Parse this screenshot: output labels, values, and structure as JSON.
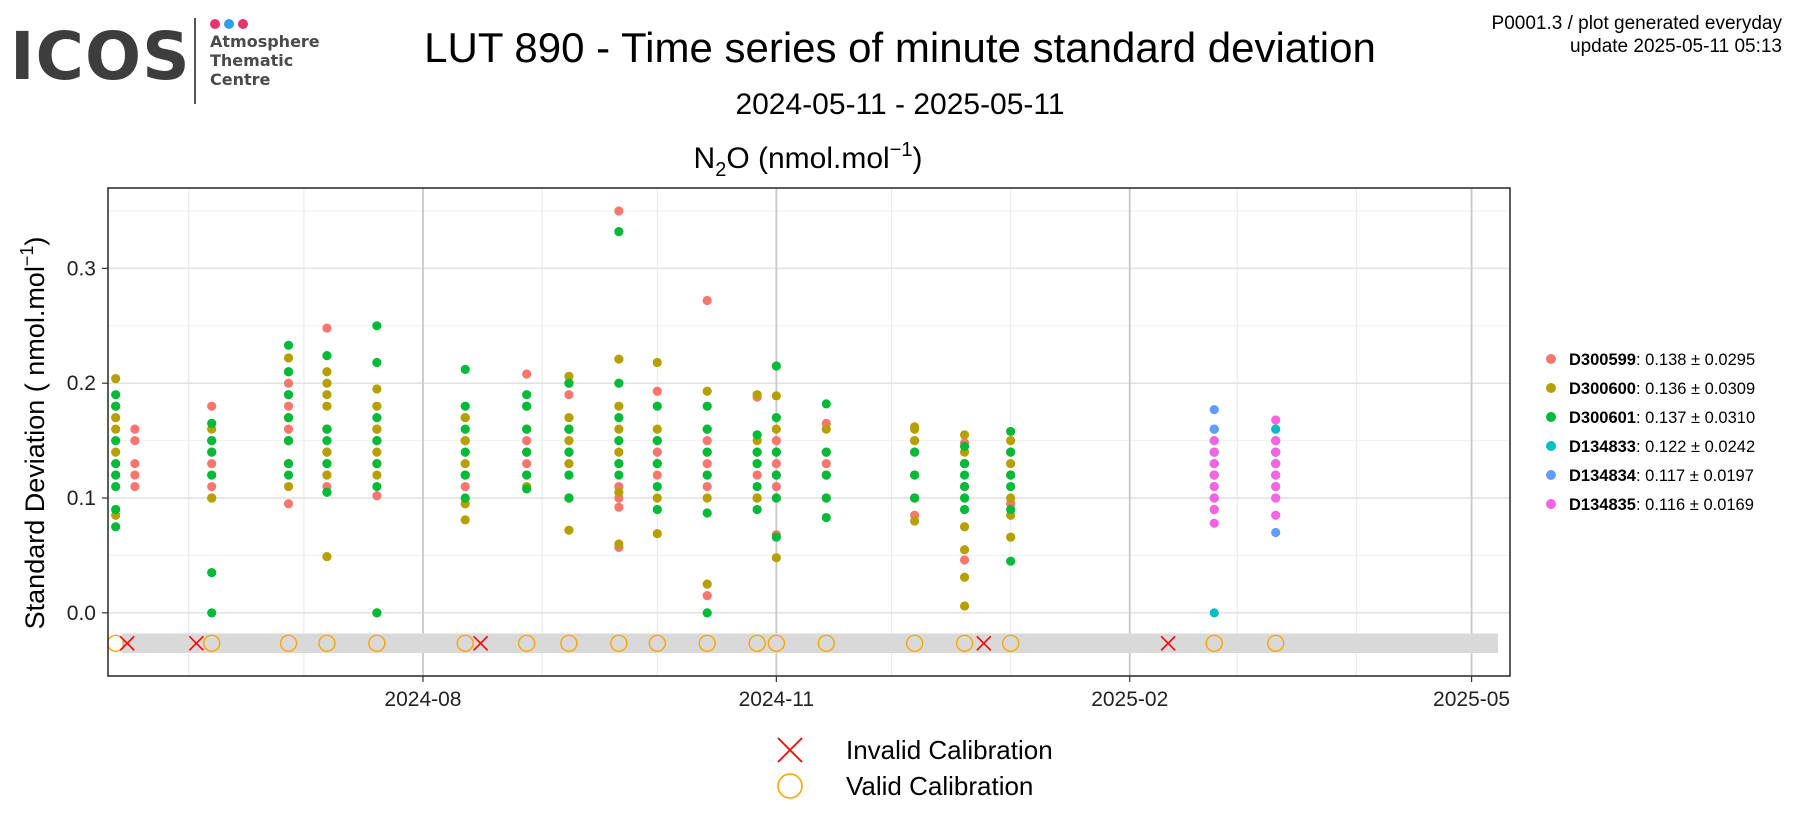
{
  "logo": {
    "wordmark": "ICOS",
    "line1": "Atmosphere",
    "line2": "Thematic",
    "line3": "Centre",
    "dot_colors": [
      "#e8336d",
      "#2f9ee8",
      "#e8336d"
    ]
  },
  "header": {
    "title": "LUT 890 - Time series of minute standard deviation",
    "date_range": "2024-05-11 - 2025-05-11",
    "corner_line1": "P0001.3 / plot generated everyday",
    "corner_line2": "update  2025-05-11 05:13"
  },
  "chart_data": {
    "type": "scatter",
    "title": "N2O (nmol.mol-1)",
    "title_parts": {
      "a": "N",
      "sub": "2",
      "b": "O (nmol.mol",
      "sup": "−1",
      "c": ")"
    },
    "ylabel_parts": {
      "a": "Standard Deviation ( nmol.mol",
      "sup": "−1",
      "c": ")"
    },
    "x_type": "date",
    "xlim": [
      "2024-05-11",
      "2025-05-11"
    ],
    "ylim": [
      -0.055,
      0.37
    ],
    "x_ticks": [
      "2024-08-01",
      "2024-11-01",
      "2025-02-01",
      "2025-05-01"
    ],
    "x_tick_labels": [
      "2024-08",
      "2024-11",
      "2025-02",
      "2025-05"
    ],
    "y_ticks": [
      0.0,
      0.1,
      0.2,
      0.3
    ],
    "y_tick_labels": [
      "0.0",
      "0.1",
      "0.2",
      "0.3"
    ],
    "grid": true,
    "calibration_band": [
      -0.035,
      -0.018
    ],
    "series": [
      {
        "name": "D300599",
        "label": ": 0.138 ± 0.0295",
        "color": "#F8766D",
        "points": [
          [
            "2024-05-18",
            [
              0.13,
              0.15,
              0.16,
              0.12,
              0.11
            ]
          ],
          [
            "2024-06-07",
            [
              0.18,
              0.1,
              0.11,
              0.13,
              0.15
            ]
          ],
          [
            "2024-06-27",
            [
              0.095,
              0.2,
              0.18,
              0.15,
              0.16
            ]
          ],
          [
            "2024-07-07",
            [
              0.248,
              0.11,
              0.12,
              0.14,
              0.16
            ]
          ],
          [
            "2024-07-20",
            [
              0.102,
              0.13,
              0.16,
              0.15
            ]
          ],
          [
            "2024-08-12",
            [
              0.15,
              0.17,
              0.12,
              0.11
            ]
          ],
          [
            "2024-08-28",
            [
              0.208,
              0.15,
              0.13,
              0.12
            ]
          ],
          [
            "2024-09-08",
            [
              0.19,
              0.2,
              0.16,
              0.14,
              0.12,
              0.1
            ]
          ],
          [
            "2024-09-21",
            [
              0.35,
              0.057,
              0.092,
              0.1,
              0.11,
              0.13
            ]
          ],
          [
            "2024-10-01",
            [
              0.193,
              0.15,
              0.14,
              0.12
            ]
          ],
          [
            "2024-10-14",
            [
              0.272,
              0.015,
              0.15,
              0.13,
              0.11
            ]
          ],
          [
            "2024-10-27",
            [
              0.188,
              0.14,
              0.1,
              0.12
            ]
          ],
          [
            "2024-11-01",
            [
              0.068,
              0.15,
              0.13,
              0.11
            ]
          ],
          [
            "2024-11-14",
            [
              0.165,
              0.1,
              0.13,
              0.12
            ]
          ],
          [
            "2024-12-07",
            [
              0.085,
              0.1,
              0.12,
              0.15
            ]
          ],
          [
            "2024-12-20",
            [
              0.046,
              0.148,
              0.11,
              0.13
            ]
          ],
          [
            "2025-01-01",
            [
              0.095,
              0.12,
              0.14
            ]
          ],
          [
            "2025-02-23",
            [
              0.09,
              0.1,
              0.12
            ]
          ]
        ]
      },
      {
        "name": "D300600",
        "label": ": 0.136 ± 0.0309",
        "color": "#B79F00",
        "points": [
          [
            "2024-05-13",
            [
              0.204,
              0.085,
              0.16,
              0.18,
              0.12,
              0.14,
              0.17
            ]
          ],
          [
            "2024-06-07",
            [
              0.1,
              0.12,
              0.14,
              0.16
            ]
          ],
          [
            "2024-06-27",
            [
              0.222,
              0.11,
              0.13,
              0.15,
              0.17,
              0.19,
              0.21
            ]
          ],
          [
            "2024-07-07",
            [
              0.049,
              0.105,
              0.21,
              0.2,
              0.19,
              0.18,
              0.16,
              0.14,
              0.13,
              0.12
            ]
          ],
          [
            "2024-07-20",
            [
              0.0,
              0.195,
              0.18,
              0.16,
              0.14,
              0.12
            ]
          ],
          [
            "2024-08-12",
            [
              0.081,
              0.095,
              0.13,
              0.15,
              0.17
            ]
          ],
          [
            "2024-08-28",
            [
              0.11,
              0.14,
              0.16,
              0.18
            ]
          ],
          [
            "2024-09-08",
            [
              0.206,
              0.072,
              0.1,
              0.13,
              0.15,
              0.17
            ]
          ],
          [
            "2024-09-21",
            [
              0.221,
              0.06,
              0.105,
              0.14,
              0.16,
              0.18
            ]
          ],
          [
            "2024-10-01",
            [
              0.218,
              0.069,
              0.1,
              0.13,
              0.16
            ]
          ],
          [
            "2024-10-14",
            [
              0.193,
              0.025,
              0.1,
              0.12,
              0.14,
              0.16
            ]
          ],
          [
            "2024-10-27",
            [
              0.19,
              0.1,
              0.13,
              0.15
            ]
          ],
          [
            "2024-11-01",
            [
              0.189,
              0.048,
              0.1,
              0.12,
              0.14,
              0.16
            ]
          ],
          [
            "2024-11-14",
            [
              0.16,
              0.12,
              0.14
            ]
          ],
          [
            "2024-12-07",
            [
              0.162,
              0.08,
              0.1,
              0.12,
              0.14,
              0.15,
              0.16
            ]
          ],
          [
            "2024-12-20",
            [
              0.155,
              0.006,
              0.031,
              0.055,
              0.075,
              0.1,
              0.13,
              0.14
            ]
          ],
          [
            "2025-01-01",
            [
              0.15,
              0.066,
              0.085,
              0.1,
              0.12,
              0.13
            ]
          ]
        ]
      },
      {
        "name": "D300601",
        "label": ": 0.137 ± 0.0310",
        "color": "#00BA38",
        "points": [
          [
            "2024-05-13",
            [
              0.075,
              0.19,
              0.18,
              0.15,
              0.13,
              0.12,
              0.11,
              0.09
            ]
          ],
          [
            "2024-06-07",
            [
              0.035,
              0.0,
              0.165,
              0.15,
              0.14,
              0.12
            ]
          ],
          [
            "2024-06-27",
            [
              0.233,
              0.21,
              0.19,
              0.17,
              0.15,
              0.13,
              0.12
            ]
          ],
          [
            "2024-07-07",
            [
              0.224,
              0.105,
              0.16,
              0.15,
              0.13
            ]
          ],
          [
            "2024-07-20",
            [
              0.25,
              0.0,
              0.218,
              0.17,
              0.15,
              0.13,
              0.11
            ]
          ],
          [
            "2024-08-12",
            [
              0.212,
              0.1,
              0.12,
              0.14,
              0.16,
              0.18
            ]
          ],
          [
            "2024-08-28",
            [
              0.19,
              0.108,
              0.12,
              0.14,
              0.16,
              0.18
            ]
          ],
          [
            "2024-09-08",
            [
              0.2,
              0.1,
              0.12,
              0.14,
              0.16
            ]
          ],
          [
            "2024-09-21",
            [
              0.332,
              0.2,
              0.17,
              0.15,
              0.13,
              0.12
            ]
          ],
          [
            "2024-10-01",
            [
              0.18,
              0.09,
              0.11,
              0.13,
              0.15
            ]
          ],
          [
            "2024-10-14",
            [
              0.18,
              0.087,
              0.0,
              0.12,
              0.14,
              0.16
            ]
          ],
          [
            "2024-10-27",
            [
              0.155,
              0.09,
              0.11,
              0.13,
              0.14
            ]
          ],
          [
            "2024-11-01",
            [
              0.215,
              0.066,
              0.1,
              0.12,
              0.14,
              0.17
            ]
          ],
          [
            "2024-11-14",
            [
              0.182,
              0.083,
              0.1,
              0.12,
              0.14
            ]
          ],
          [
            "2024-12-07",
            [
              0.14,
              0.1,
              0.12
            ]
          ],
          [
            "2024-12-20",
            [
              0.145,
              0.09,
              0.1,
              0.11,
              0.12,
              0.13
            ]
          ],
          [
            "2025-01-01",
            [
              0.158,
              0.045,
              0.09,
              0.11,
              0.12,
              0.14
            ]
          ]
        ]
      },
      {
        "name": "D134833",
        "label": ": 0.122 ± 0.0242",
        "color": "#00BFC4",
        "points": [
          [
            "2025-02-23",
            [
              0.0,
              0.15,
              0.16,
              0.14,
              0.13,
              0.12
            ]
          ],
          [
            "2025-03-11",
            [
              0.15,
              0.16,
              0.14,
              0.13,
              0.12
            ]
          ]
        ]
      },
      {
        "name": "D134834",
        "label": ": 0.117 ± 0.0197",
        "color": "#619CFF",
        "points": [
          [
            "2025-02-23",
            [
              0.177,
              0.1,
              0.11,
              0.12,
              0.13,
              0.14,
              0.16
            ]
          ],
          [
            "2025-03-11",
            [
              0.07,
              0.1,
              0.11,
              0.12,
              0.13,
              0.14
            ]
          ]
        ]
      },
      {
        "name": "D134835",
        "label": ": 0.116 ± 0.0169",
        "color": "#F564E3",
        "points": [
          [
            "2025-02-23",
            [
              0.078,
              0.09,
              0.1,
              0.11,
              0.12,
              0.13,
              0.14,
              0.15
            ]
          ],
          [
            "2025-03-11",
            [
              0.168,
              0.085,
              0.1,
              0.11,
              0.12,
              0.13,
              0.14,
              0.15
            ]
          ]
        ]
      }
    ],
    "calibrations": {
      "valid": [
        "2024-05-13",
        "2024-06-07",
        "2024-06-27",
        "2024-07-07",
        "2024-07-20",
        "2024-08-12",
        "2024-08-28",
        "2024-09-08",
        "2024-09-21",
        "2024-10-01",
        "2024-10-14",
        "2024-10-27",
        "2024-11-01",
        "2024-11-14",
        "2024-12-07",
        "2024-12-20",
        "2025-01-01",
        "2025-02-23",
        "2025-03-11"
      ],
      "invalid": [
        "2024-05-16",
        "2024-06-03",
        "2024-08-16",
        "2024-12-25",
        "2025-02-11"
      ]
    },
    "legend_position": "right",
    "bottom_legend": {
      "invalid": "Invalid Calibration",
      "valid": "Valid Calibration",
      "invalid_color": "#FF0000",
      "valid_color": "#FFA500"
    }
  }
}
